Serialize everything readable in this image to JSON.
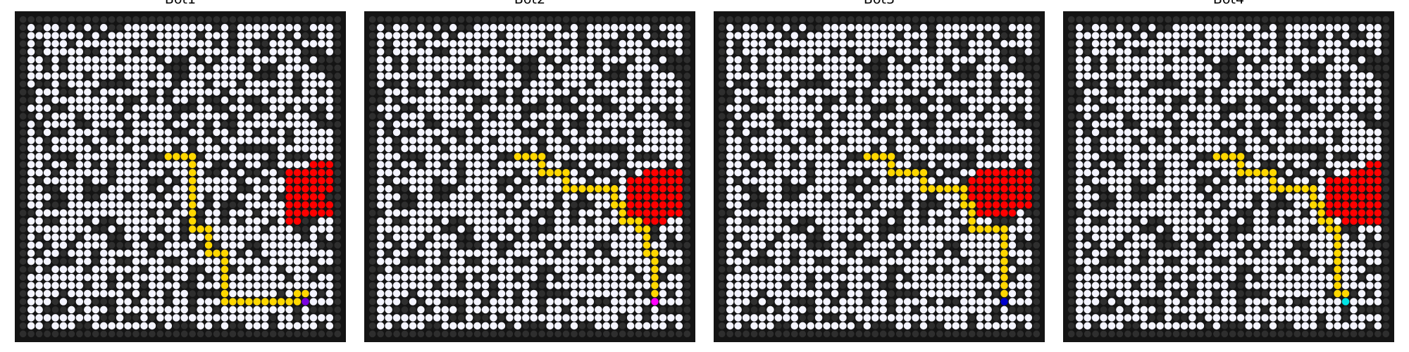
{
  "figure": {
    "panels": [
      {
        "title": "Bot1",
        "bot_color": "#7a00e0"
      },
      {
        "title": "Bot2",
        "bot_color": "#ff00ff"
      },
      {
        "title": "Bot3",
        "bot_color": "#0000cc"
      },
      {
        "title": "Bot4",
        "bot_color": "#00e5e5"
      }
    ],
    "colors": {
      "background": "#141414",
      "wall_cell": "#2e2e2e",
      "open_cell": "#f4f4ff",
      "path": "#ffd700",
      "fire": "#ff0000"
    },
    "grid_size": 40
  }
}
